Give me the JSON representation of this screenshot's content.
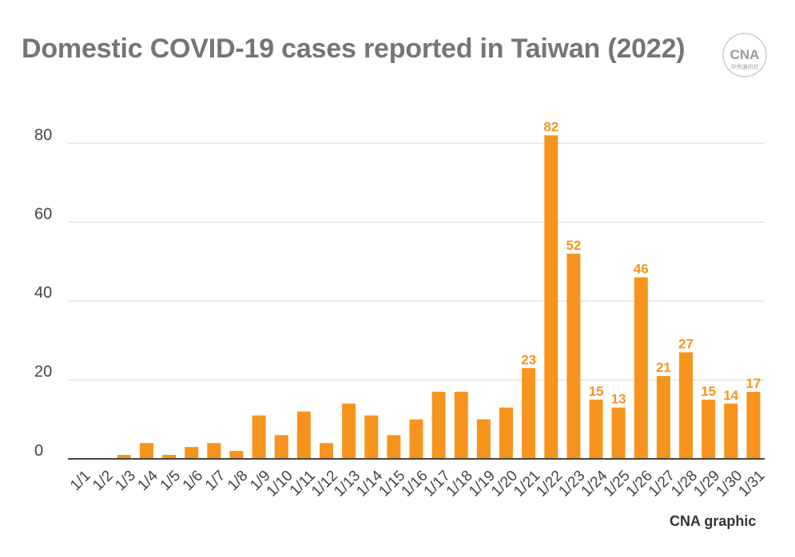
{
  "title": "Domestic COVID-19 cases reported in Taiwan (2022)",
  "logo": {
    "text": "CNA",
    "subtext": "中央通訊社",
    "icon": "cna-logo-icon"
  },
  "credit": "CNA graphic",
  "colors": {
    "bar": "#F7941D",
    "label": "#F7941D",
    "axis": "#444444",
    "grid": "#d9d9d9",
    "title": "#757575"
  },
  "chart_data": {
    "type": "bar",
    "categories": [
      "1/1",
      "1/2",
      "1/3",
      "1/4",
      "1/5",
      "1/6",
      "1/7",
      "1/8",
      "1/9",
      "1/10",
      "1/11",
      "1/12",
      "1/13",
      "1/14",
      "1/15",
      "1/16",
      "1/17",
      "1/18",
      "1/19",
      "1/20",
      "1/21",
      "1/22",
      "1/23",
      "1/24",
      "1/25",
      "1/26",
      "1/27",
      "1/28",
      "1/29",
      "1/30",
      "1/31"
    ],
    "values": [
      0,
      0,
      1,
      4,
      1,
      3,
      4,
      2,
      11,
      6,
      12,
      4,
      14,
      11,
      6,
      10,
      17,
      17,
      10,
      13,
      23,
      82,
      52,
      15,
      13,
      46,
      21,
      27,
      15,
      14,
      17
    ],
    "labeled_points": [
      {
        "category": "1/21",
        "label": "23"
      },
      {
        "category": "1/22",
        "label": "82"
      },
      {
        "category": "1/23",
        "label": "52"
      },
      {
        "category": "1/24",
        "label": "15"
      },
      {
        "category": "1/25",
        "label": "13"
      },
      {
        "category": "1/26",
        "label": "46"
      },
      {
        "category": "1/27",
        "label": "21"
      },
      {
        "category": "1/28",
        "label": "27"
      },
      {
        "category": "1/29",
        "label": "15"
      },
      {
        "category": "1/30",
        "label": "14"
      },
      {
        "category": "1/31",
        "label": "17"
      }
    ],
    "yticks": [
      0,
      20,
      40,
      60,
      80
    ],
    "ylim": [
      0,
      82
    ],
    "xlabel": "",
    "ylabel": "",
    "grid": true,
    "legend": "none"
  }
}
